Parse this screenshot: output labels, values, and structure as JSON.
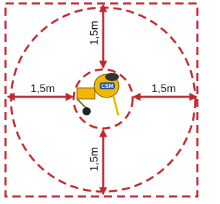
{
  "labels": {
    "top": "1,5m",
    "bottom": "1,5m",
    "left": "1,5m",
    "right": "1,5m"
  },
  "logo": "CSM"
}
